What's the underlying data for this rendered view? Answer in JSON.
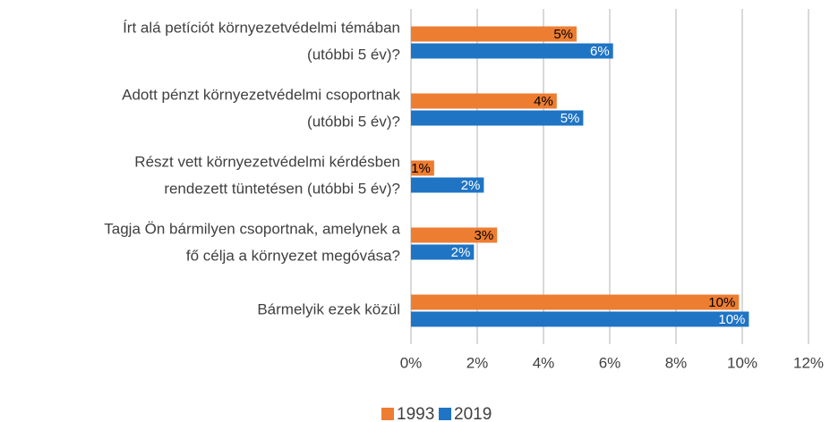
{
  "chart_data": {
    "type": "bar",
    "orientation": "horizontal",
    "categories": [
      "Írt alá petíciót környezetvédelmi témában\n(utóbbi 5 év)?",
      "Adott pénzt környezetvédelmi csoportnak\n(utóbbi 5 év)?",
      "Részt vett környezetvédelmi kérdésben\nrendezett tüntetésen (utóbbi 5 év)?",
      "Tagja Ön bármilyen csoportnak, amelynek a\nfő célja a környezet megóvása?",
      "Bármelyik ezek közül"
    ],
    "series": [
      {
        "name": "1993",
        "color": "#ed7d31",
        "values": [
          5.0,
          4.4,
          0.7,
          2.6,
          9.9
        ],
        "value_labels": [
          "5%",
          "4%",
          "1%",
          "3%",
          "10%"
        ]
      },
      {
        "name": "2019",
        "color": "#1f74c4",
        "values": [
          6.1,
          5.2,
          2.2,
          1.9,
          10.2
        ],
        "value_labels": [
          "6%",
          "5%",
          "2%",
          "2%",
          "10%"
        ]
      }
    ],
    "xlim": [
      0,
      12
    ],
    "xticks": [
      {
        "value": 0,
        "label": "0%"
      },
      {
        "value": 2,
        "label": "2%"
      },
      {
        "value": 4,
        "label": "4%"
      },
      {
        "value": 6,
        "label": "6%"
      },
      {
        "value": 8,
        "label": "8%"
      },
      {
        "value": 10,
        "label": "10%"
      },
      {
        "value": 12,
        "label": "12%"
      }
    ],
    "grid": true,
    "legend": "bottom"
  }
}
